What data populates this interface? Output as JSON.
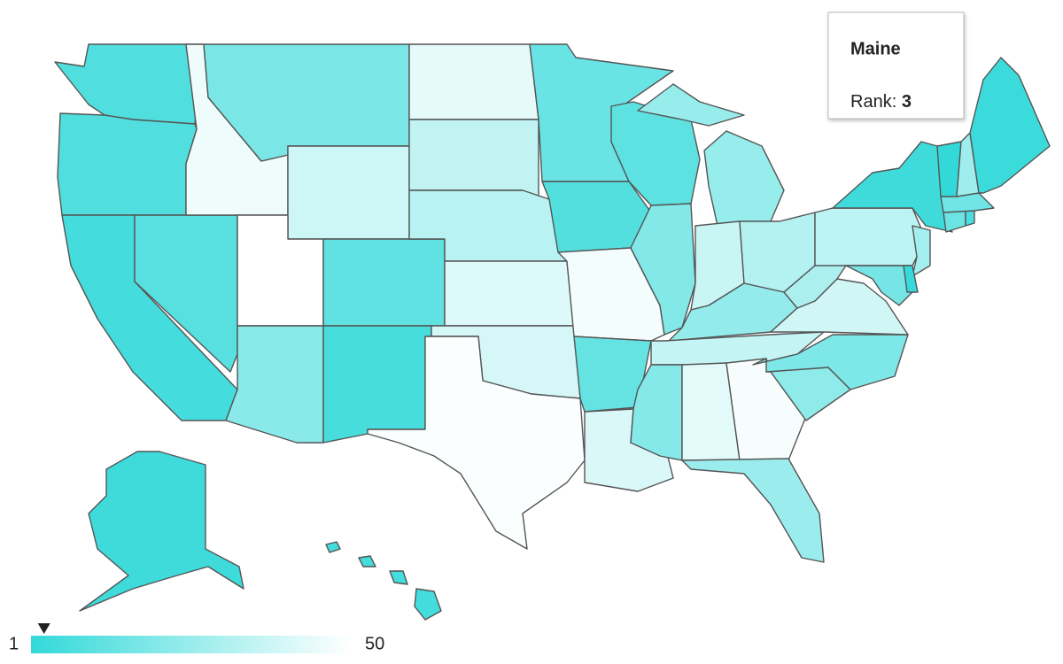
{
  "map": {
    "regions": [
      8,
      8,
      5,
      10,
      46,
      18,
      38,
      50,
      12,
      22,
      6,
      44,
      35,
      33,
      42,
      40,
      49,
      14,
      9,
      47,
      13,
      41,
      11,
      20,
      25,
      25,
      37,
      32,
      24,
      36,
      21,
      43,
      48,
      26,
      23,
      19,
      39,
      30,
      34,
      4,
      28,
      17,
      2,
      15,
      7,
      16,
      1,
      27,
      3,
      4,
      5,
      5,
      5,
      5
    ],
    "colors": [
      "#33d9d9",
      "#ffffff"
    ],
    "legend": {
      "min": 1,
      "max": 50
    }
  },
  "tooltip": {
    "title": "Maine",
    "label": "Rank:",
    "value": 3
  }
}
